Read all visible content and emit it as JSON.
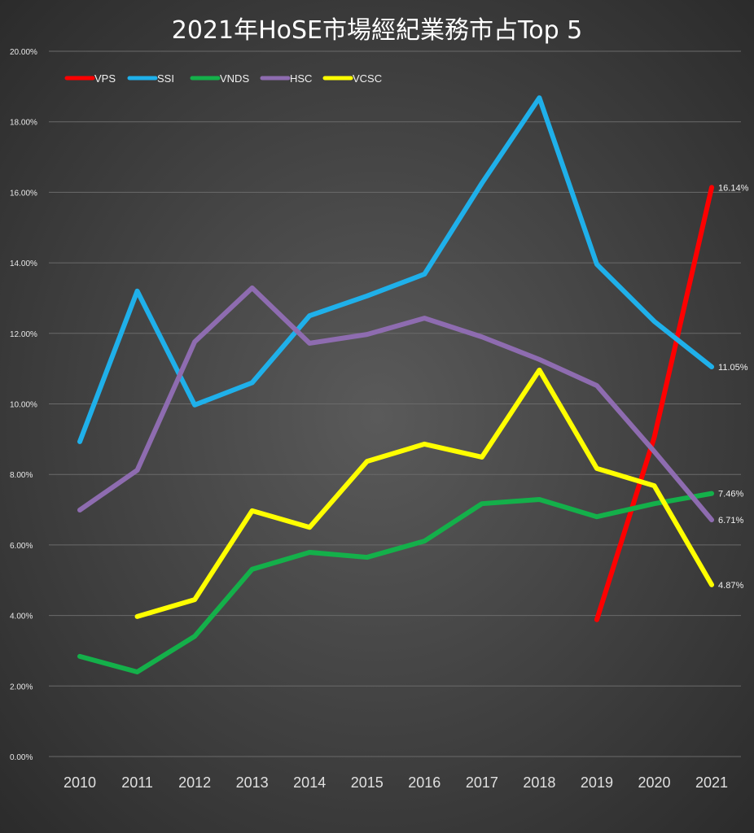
{
  "chart_data": {
    "type": "line",
    "title": "2021年HoSE市場經紀業務市占Top 5",
    "xlabel": "",
    "ylabel": "",
    "x": [
      "2010",
      "2011",
      "2012",
      "2013",
      "2014",
      "2015",
      "2016",
      "2017",
      "2018",
      "2019",
      "2020",
      "2021"
    ],
    "ylim": [
      0,
      20
    ],
    "yticks": [
      "0.00%",
      "2.00%",
      "4.00%",
      "6.00%",
      "8.00%",
      "10.00%",
      "12.00%",
      "14.00%",
      "16.00%",
      "18.00%",
      "20.00%"
    ],
    "grid": true,
    "legend_position": "top-left",
    "series": [
      {
        "name": "VPS",
        "color": "#ff0000",
        "values": [
          null,
          null,
          null,
          null,
          null,
          null,
          null,
          null,
          null,
          3.88,
          9.05,
          16.14
        ],
        "end_label": "16.14%"
      },
      {
        "name": "SSI",
        "color": "#1fb0ea",
        "values": [
          8.93,
          13.2,
          9.97,
          10.6,
          12.5,
          13.06,
          13.68,
          16.26,
          18.68,
          13.96,
          12.34,
          11.05
        ],
        "end_label": "11.05%"
      },
      {
        "name": "VNDS",
        "color": "#14b04a",
        "values": [
          2.84,
          2.4,
          3.41,
          5.31,
          5.79,
          5.65,
          6.11,
          7.17,
          7.29,
          6.8,
          7.17,
          7.46
        ],
        "end_label": "7.46%"
      },
      {
        "name": "HSC",
        "color": "#8e6cb0",
        "values": [
          6.99,
          8.12,
          11.76,
          13.29,
          11.72,
          11.97,
          12.43,
          11.9,
          11.26,
          10.52,
          8.65,
          6.71
        ],
        "end_label": "6.71%"
      },
      {
        "name": "VCSC",
        "color": "#ffff00",
        "values": [
          null,
          3.97,
          4.45,
          6.97,
          6.5,
          8.37,
          8.86,
          8.49,
          10.96,
          8.17,
          7.68,
          4.87
        ],
        "end_label": "4.87%"
      }
    ]
  }
}
